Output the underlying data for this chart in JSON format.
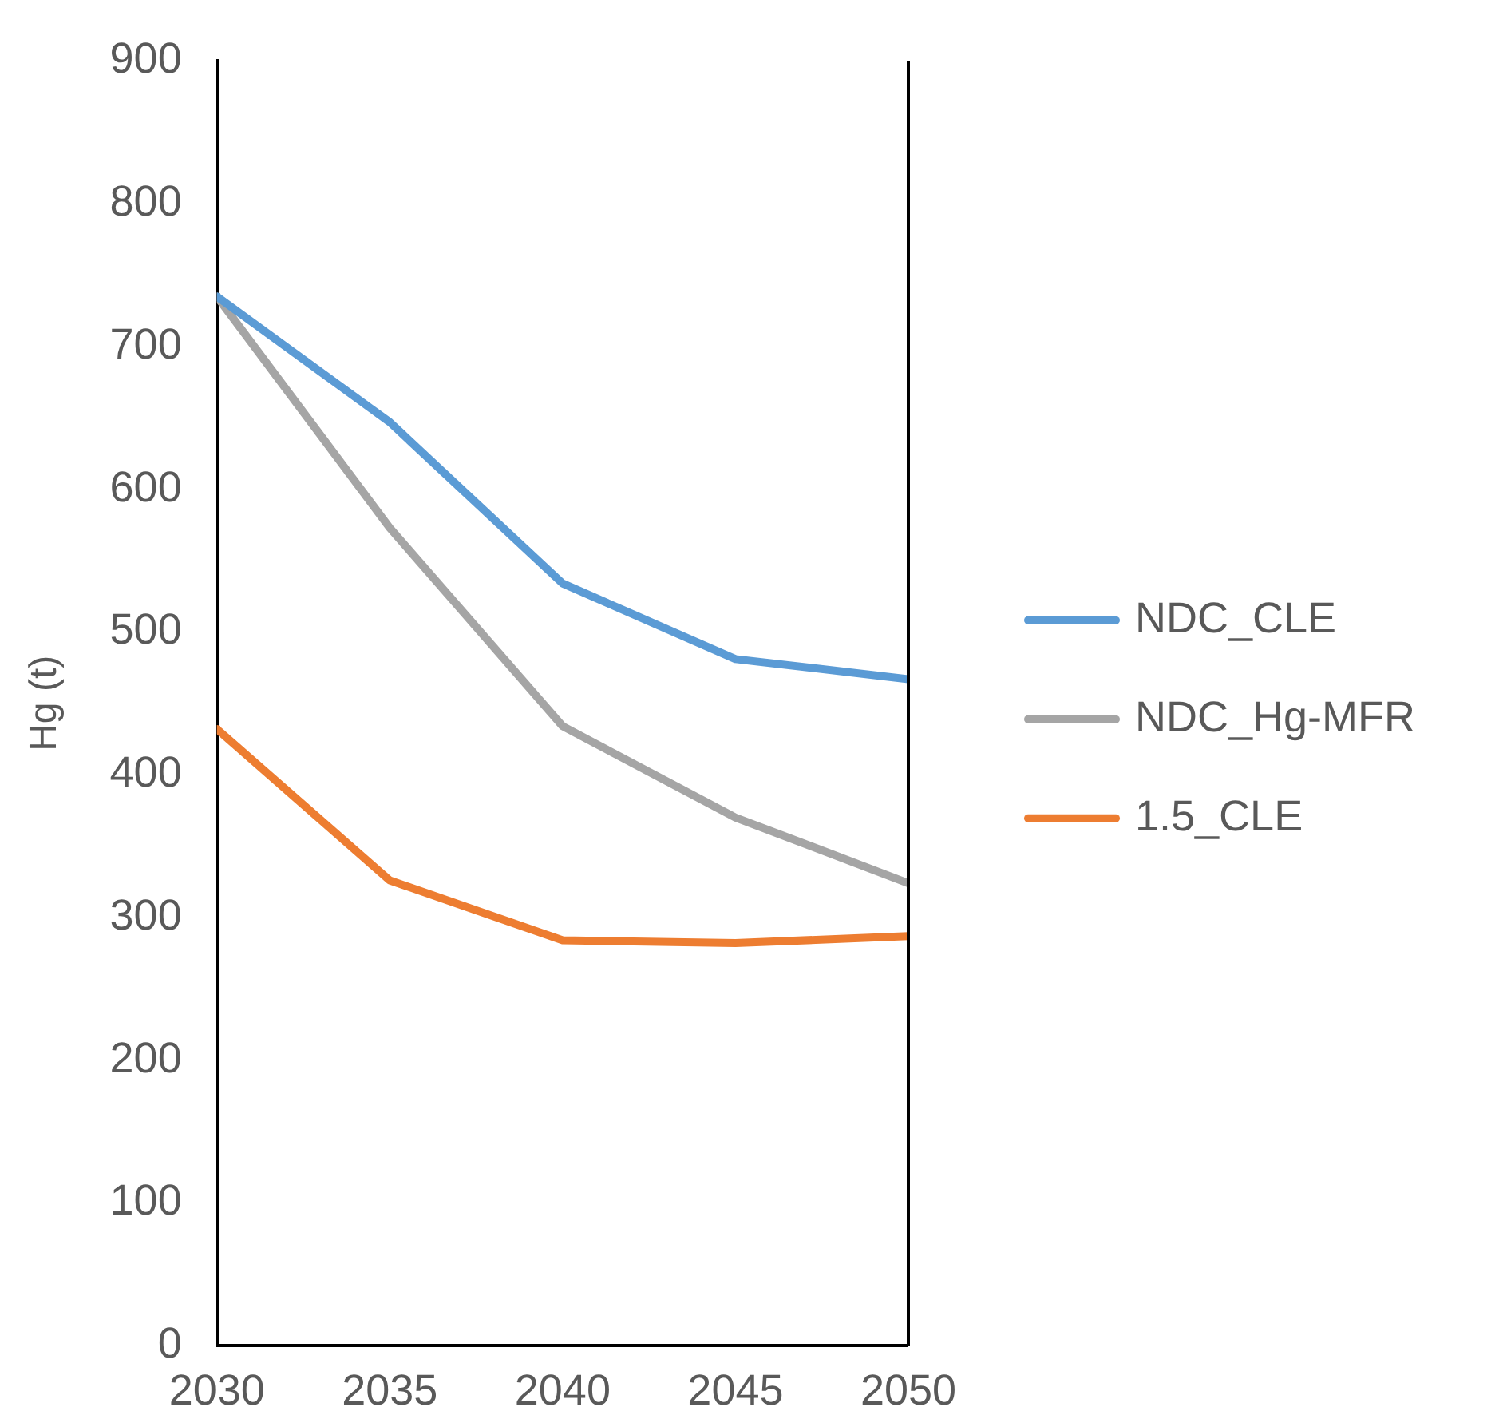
{
  "chart_data": {
    "type": "line",
    "ylabel": "Hg (t)",
    "x": [
      2030,
      2035,
      2040,
      2045,
      2050
    ],
    "xlim": [
      2030,
      2050
    ],
    "xticks": [
      2030,
      2035,
      2040,
      2045,
      2050
    ],
    "ylim": [
      0,
      900
    ],
    "yticks": [
      0,
      100,
      200,
      300,
      400,
      500,
      600,
      700,
      800,
      900
    ],
    "grid": false,
    "legend": "right",
    "marker": "none",
    "line_style": "solid",
    "series": [
      {
        "name": "NDC_CLE",
        "color": "#5b9bd5",
        "values": [
          735,
          647,
          534,
          481,
          467
        ]
      },
      {
        "name": "NDC_Hg-MFR",
        "color": "#a5a5a5",
        "values": [
          735,
          573,
          434,
          370,
          324
        ]
      },
      {
        "name": "1.5_CLE",
        "color": "#ed7d31",
        "values": [
          432,
          326,
          284,
          282,
          287
        ]
      }
    ]
  }
}
